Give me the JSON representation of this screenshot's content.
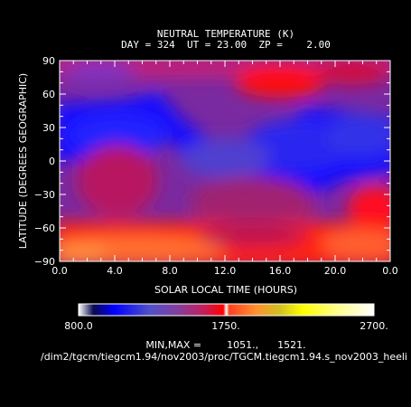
{
  "chart_data": {
    "type": "heatmap",
    "title": "NEUTRAL TEMPERATURE (K)",
    "subtitle": "DAY = 324  UT = 23.00  ZP =    2.00",
    "xlabel": "SOLAR LOCAL TIME (HOURS)",
    "ylabel": "LATITUDE (DEGREES GEOGRAPHIC)",
    "xlim": [
      0,
      24
    ],
    "ylim": [
      -90,
      90
    ],
    "x_ticks": [
      "0.0",
      "4.0",
      "8.0",
      "12.0",
      "16.0",
      "20.0",
      "0.0"
    ],
    "y_ticks": [
      "90",
      "60",
      "30",
      "0",
      "−30",
      "−60",
      "−90"
    ],
    "colorbar": {
      "min_label": "800.0",
      "mid_label": "1750.",
      "max_label": "2700.",
      "range": [
        800,
        2700
      ]
    },
    "min_max_text": "MIN,MAX =        1051.,      1521.",
    "value_range": [
      1051,
      1521
    ],
    "footer_path": "/dim2/tgcm/tiegcm1.94/nov2003/proc/TGCM.tiegcm1.94.s_nov2003_heeli",
    "colors": {
      "low": "#1010ff",
      "mid": "#8030a0",
      "high": "#ff1010",
      "hot": "#ff8030"
    }
  }
}
